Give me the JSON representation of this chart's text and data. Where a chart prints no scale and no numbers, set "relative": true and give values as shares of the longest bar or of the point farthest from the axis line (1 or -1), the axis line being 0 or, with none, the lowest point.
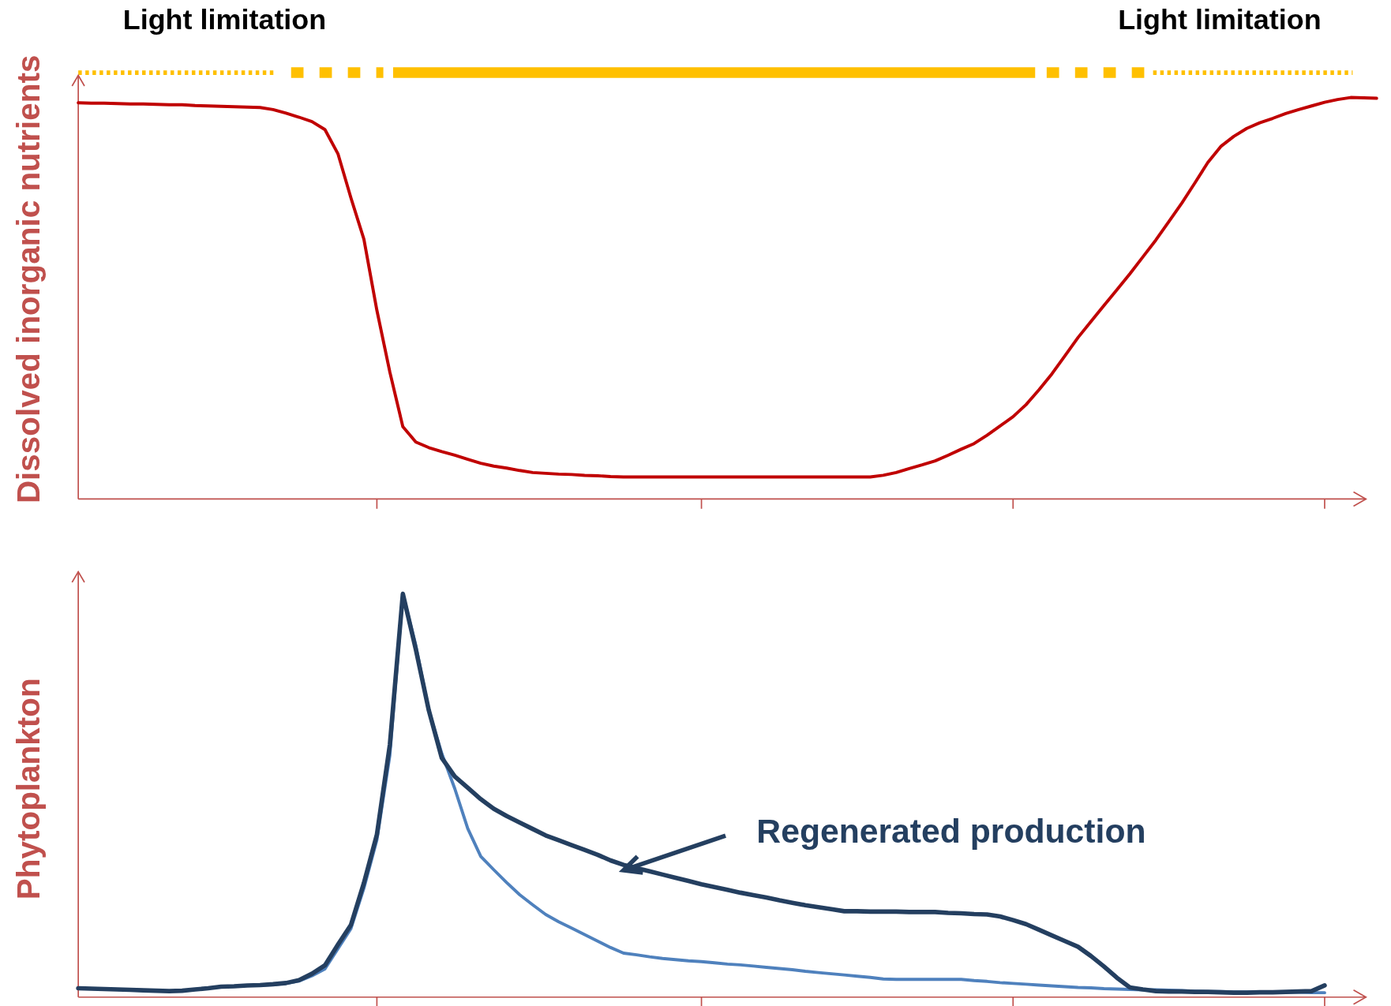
{
  "chart_data": [
    {
      "type": "line",
      "relative": true,
      "ylabel": "Dissolved inorganic nutrients",
      "annotations": [
        "Light limitation",
        "Light limitation"
      ],
      "categories": [
        null,
        null,
        null,
        null,
        null,
        null,
        null,
        null,
        null,
        null,
        null,
        null,
        null,
        null,
        null,
        null,
        null,
        null,
        null,
        null,
        null,
        null,
        null,
        null,
        null,
        null,
        null,
        null,
        null,
        null,
        null,
        null,
        null,
        null,
        null,
        null,
        null,
        null,
        null,
        null,
        null,
        null,
        null,
        null,
        null,
        null,
        null,
        null,
        null,
        null,
        null,
        null,
        null,
        null,
        null,
        null,
        null,
        null,
        null,
        null,
        null,
        null,
        null,
        null,
        null,
        null,
        null,
        null,
        null,
        null,
        null,
        null,
        null,
        null,
        null,
        null,
        null,
        null,
        null,
        null,
        null,
        null,
        null,
        null,
        null,
        null,
        null,
        null,
        null,
        null,
        null,
        null,
        null,
        null,
        null,
        null,
        null,
        null,
        null,
        null,
        null
      ],
      "series": [
        {
          "color": "#c00000",
          "values": [
            0.987,
            0.986,
            0.986,
            0.985,
            0.984,
            0.984,
            0.983,
            0.982,
            0.982,
            0.98,
            0.979,
            0.978,
            0.977,
            0.976,
            0.975,
            0.97,
            0.961,
            0.951,
            0.94,
            0.92,
            0.86,
            0.75,
            0.647,
            0.47,
            0.316,
            0.18,
            0.142,
            0.128,
            0.118,
            0.109,
            0.099,
            0.089,
            0.082,
            0.077,
            0.071,
            0.066,
            0.064,
            0.062,
            0.061,
            0.059,
            0.058,
            0.056,
            0.055,
            0.055,
            0.055,
            0.055,
            0.055,
            0.055,
            0.055,
            0.055,
            0.055,
            0.055,
            0.055,
            0.055,
            0.055,
            0.055,
            0.055,
            0.055,
            0.055,
            0.055,
            0.055,
            0.055,
            0.059,
            0.066,
            0.076,
            0.085,
            0.095,
            0.109,
            0.124,
            0.138,
            0.159,
            0.182,
            0.205,
            0.235,
            0.272,
            0.312,
            0.357,
            0.402,
            0.442,
            0.482,
            0.521,
            0.561,
            0.603,
            0.645,
            0.691,
            0.737,
            0.787,
            0.838,
            0.878,
            0.903,
            0.923,
            0.937,
            0.948,
            0.96,
            0.97,
            0.979,
            0.988,
            0.995,
            1,
            0.999,
            0.998
          ]
        }
      ]
    },
    {
      "type": "line",
      "relative": true,
      "ylabel": "Phytoplankton",
      "annotations": [
        "Regenerated production"
      ],
      "categories": [
        null,
        null,
        null,
        null,
        null,
        null,
        null,
        null,
        null,
        null,
        null,
        null,
        null,
        null,
        null,
        null,
        null,
        null,
        null,
        null,
        null,
        null,
        null,
        null,
        null,
        null,
        null,
        null,
        null,
        null,
        null,
        null,
        null,
        null,
        null,
        null,
        null,
        null,
        null,
        null,
        null,
        null,
        null,
        null,
        null,
        null,
        null,
        null,
        null,
        null,
        null,
        null,
        null,
        null,
        null,
        null,
        null,
        null,
        null,
        null,
        null,
        null,
        null,
        null,
        null,
        null,
        null,
        null,
        null,
        null,
        null,
        null,
        null,
        null,
        null,
        null,
        null,
        null,
        null,
        null,
        null,
        null,
        null,
        null,
        null,
        null,
        null,
        null,
        null,
        null,
        null,
        null,
        null,
        null,
        null,
        null,
        null,
        null,
        null,
        null,
        null
      ],
      "series": [
        {
          "color": "#4f81bd",
          "values": [
            0.022,
            0.021,
            0.02,
            0.019,
            0.018,
            0.017,
            0.016,
            0.015,
            0.016,
            0.019,
            0.022,
            0.026,
            0.027,
            0.029,
            0.03,
            0.031,
            0.034,
            0.04,
            0.053,
            0.07,
            0.12,
            0.17,
            0.27,
            0.39,
            0.6,
            1,
            0.872,
            0.711,
            0.604,
            0.517,
            0.418,
            0.349,
            0.316,
            0.284,
            0.254,
            0.229,
            0.205,
            0.187,
            0.171,
            0.155,
            0.139,
            0.123,
            0.109,
            0.105,
            0.1,
            0.096,
            0.093,
            0.09,
            0.088,
            0.085,
            0.082,
            0.08,
            0.077,
            0.074,
            0.071,
            0.068,
            0.064,
            0.061,
            0.058,
            0.055,
            0.052,
            0.049,
            0.045,
            0.044,
            0.044,
            0.044,
            0.044,
            0.044,
            0.044,
            0.041,
            0.039,
            0.036,
            0.034,
            0.032,
            0.03,
            0.028,
            0.026,
            0.024,
            0.023,
            0.021,
            0.02,
            0.019,
            0.018,
            0.018,
            0.017,
            0.016,
            0.015,
            0.014,
            0.014,
            0.013,
            0.013,
            0.013,
            0.012,
            0.012,
            0.012,
            0.011,
            0.011,
            null,
            null,
            null,
            null
          ]
        },
        {
          "color": "#243f60",
          "values": [
            0.022,
            0.021,
            0.02,
            0.019,
            0.018,
            0.017,
            0.016,
            0.015,
            0.016,
            0.019,
            0.022,
            0.026,
            0.027,
            0.029,
            0.03,
            0.032,
            0.035,
            0.042,
            0.058,
            0.079,
            0.13,
            0.179,
            0.283,
            0.403,
            0.626,
            1,
            0.862,
            0.711,
            0.593,
            0.547,
            0.519,
            0.491,
            0.467,
            0.449,
            0.433,
            0.417,
            0.401,
            0.389,
            0.377,
            0.365,
            0.353,
            0.339,
            0.328,
            0.32,
            0.312,
            0.304,
            0.296,
            0.288,
            0.28,
            0.273,
            0.266,
            0.259,
            0.253,
            0.247,
            0.24,
            0.234,
            0.228,
            0.223,
            0.218,
            0.213,
            0.213,
            0.212,
            0.212,
            0.212,
            0.211,
            0.211,
            0.211,
            0.209,
            0.208,
            0.206,
            0.205,
            0.2,
            0.191,
            0.181,
            0.167,
            0.153,
            0.139,
            0.125,
            0.102,
            0.076,
            0.048,
            0.024,
            0.019,
            0.015,
            0.014,
            0.014,
            0.013,
            0.013,
            0.012,
            0.011,
            0.011,
            0.012,
            0.012,
            0.013,
            0.014,
            0.015,
            0.029,
            null,
            null,
            null,
            null
          ]
        }
      ]
    }
  ]
}
